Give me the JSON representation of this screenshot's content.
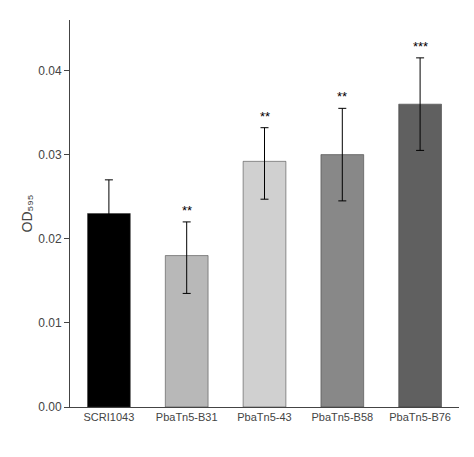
{
  "chart_data": {
    "type": "bar",
    "categories": [
      "SCRI1043",
      "PbaTn5-B31",
      "PbaTn5-43",
      "PbaTn5-B58",
      "PbaTn5-B76"
    ],
    "values": [
      0.023,
      0.018,
      0.0292,
      0.03,
      0.036
    ],
    "error_minus": [
      0.0025,
      0.0045,
      0.0045,
      0.0055,
      0.0055
    ],
    "error_plus": [
      0.004,
      0.004,
      0.004,
      0.0055,
      0.0055
    ],
    "colors": [
      "#000000",
      "#b8b8b8",
      "#d0d0d0",
      "#888888",
      "#606060"
    ],
    "annotations": [
      {
        "category": "PbaTn5-B31",
        "text": "**"
      },
      {
        "category": "PbaTn5-43",
        "text": "**"
      },
      {
        "category": "PbaTn5-B58",
        "text": "**"
      },
      {
        "category": "PbaTn5-B76",
        "text": "***"
      }
    ],
    "ylabel": "OD₅₉₅",
    "ylim": [
      0.0,
      0.046
    ],
    "yticks": [
      {
        "value": 0.0,
        "label": "0.00"
      },
      0.01,
      0.02,
      0.03,
      0.04
    ],
    "grid": false
  }
}
